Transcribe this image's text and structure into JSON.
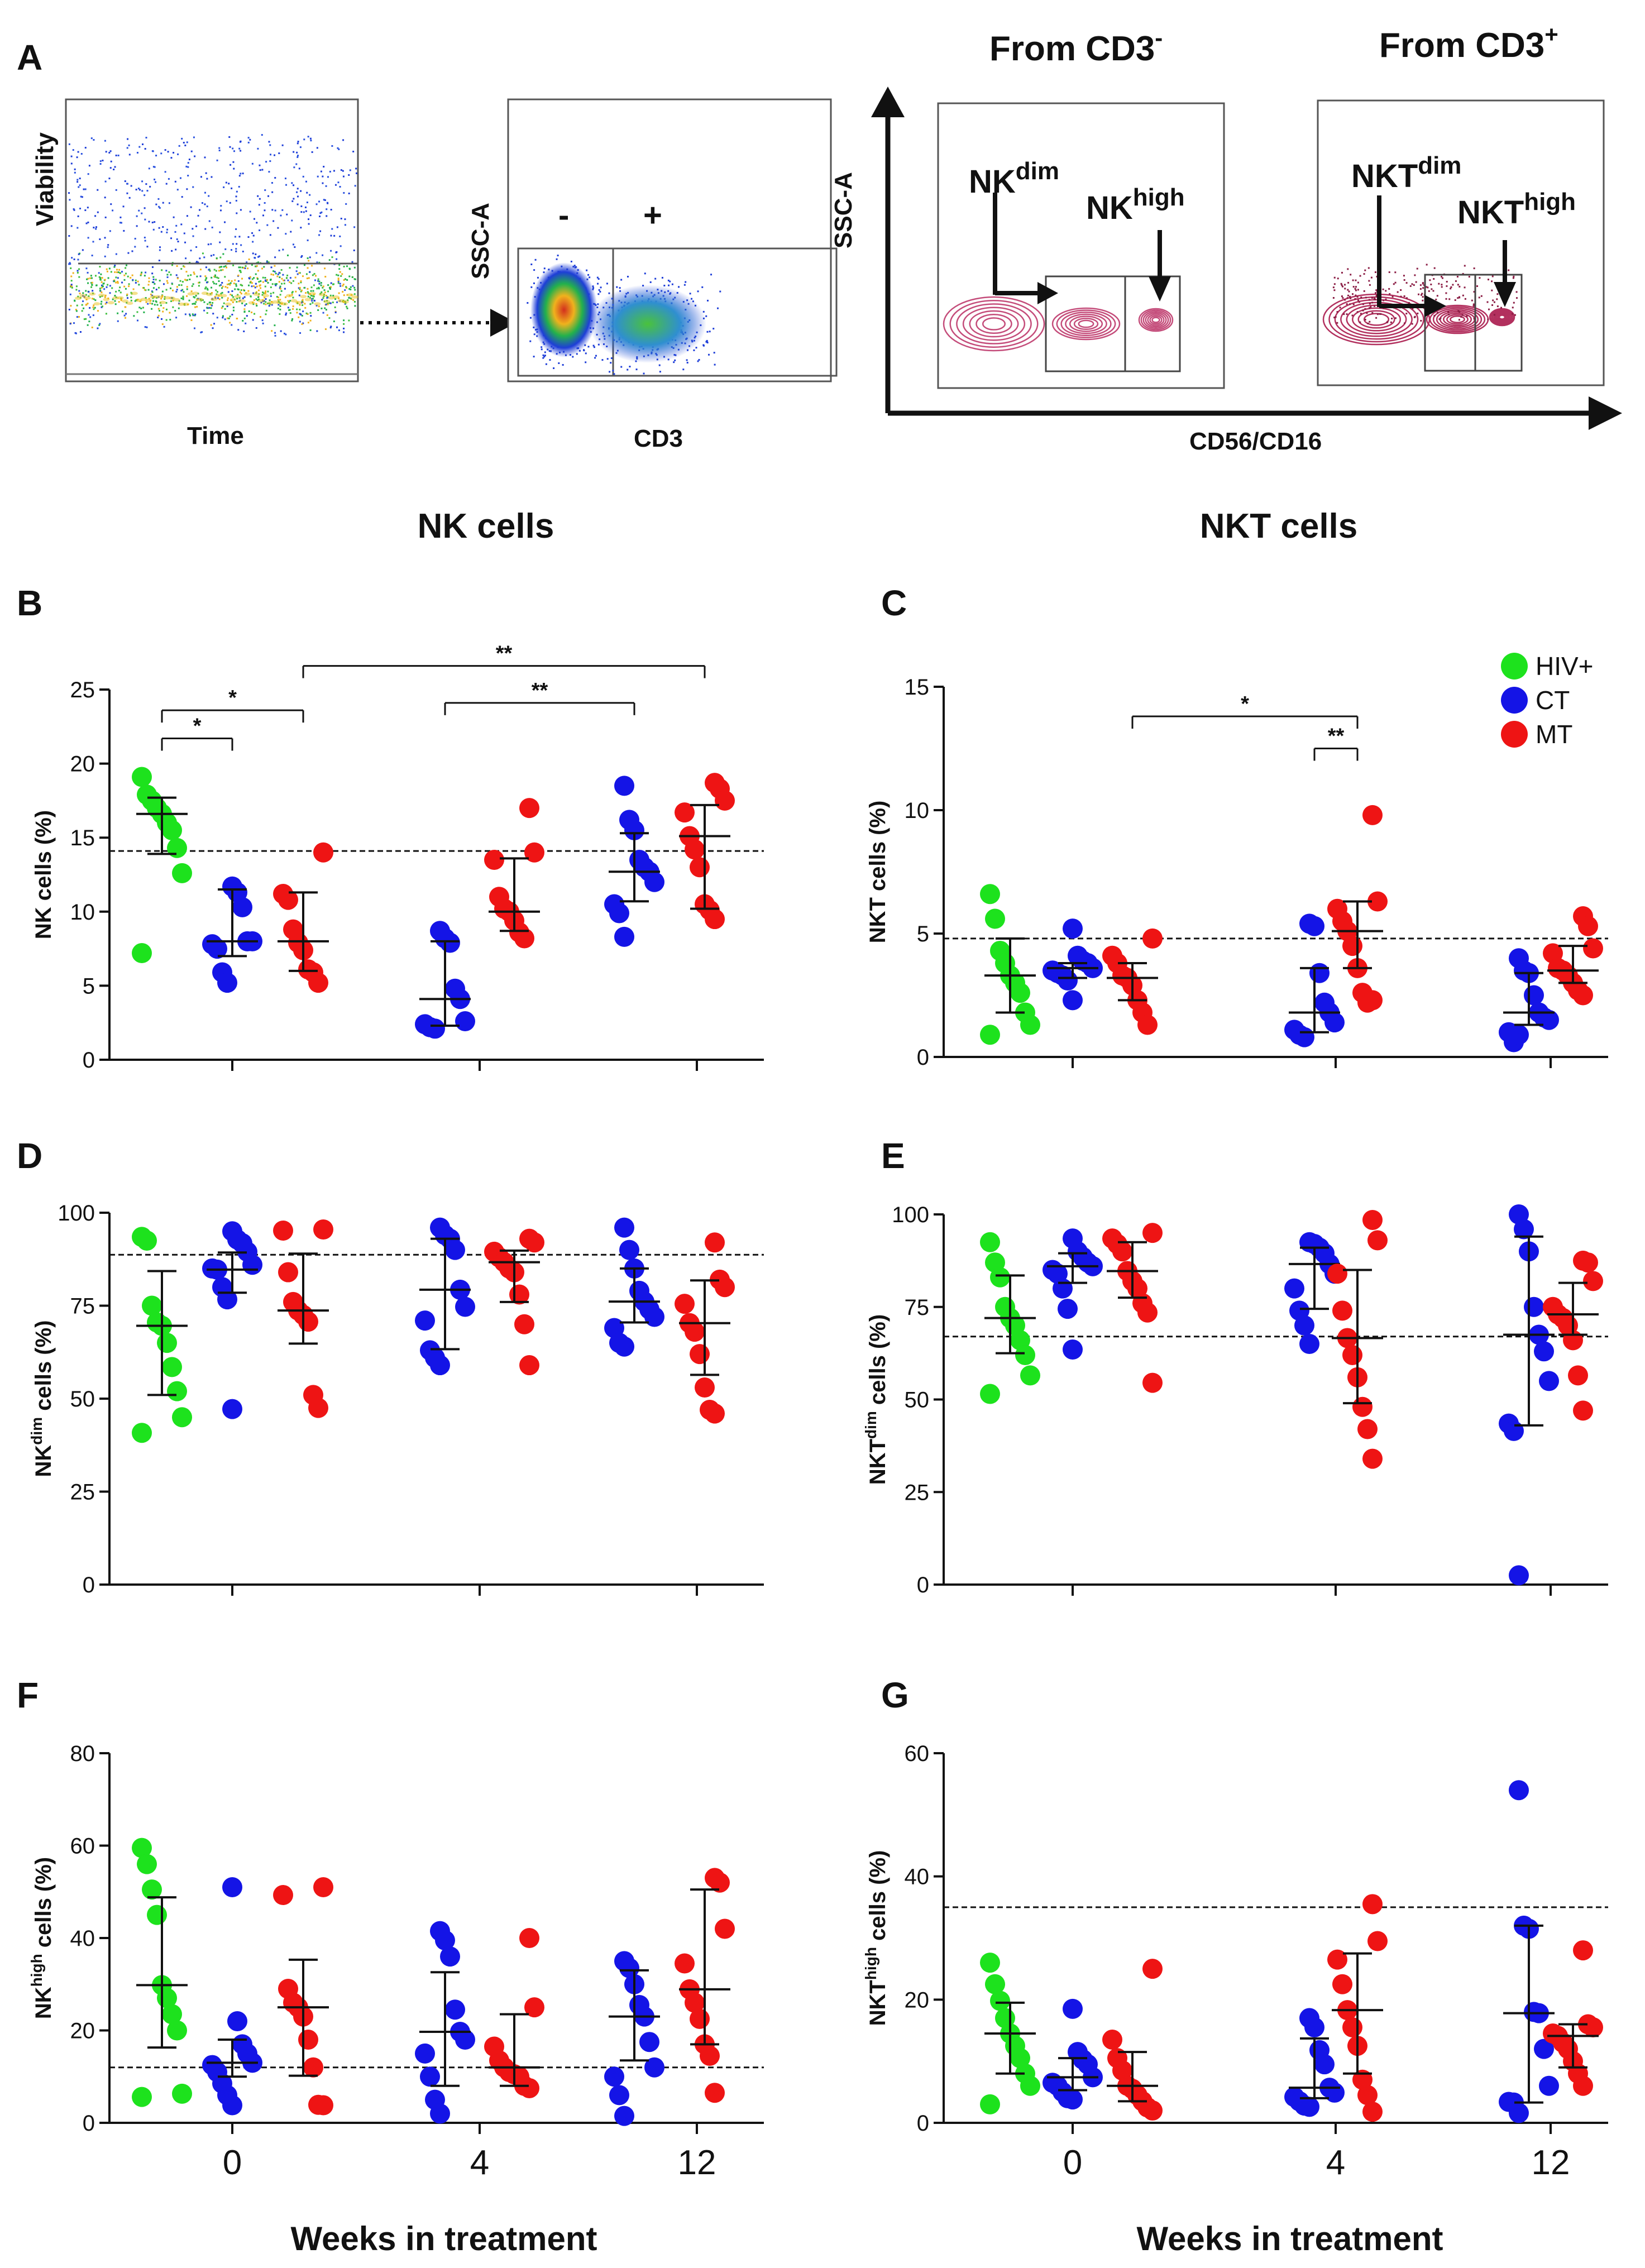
{
  "headers": {
    "left": "NK cells",
    "right": "NKT cells"
  },
  "x_axis_title": "Weeks in treatment",
  "legend": [
    {
      "label": "HIV+",
      "color": "#1de21d"
    },
    {
      "label": "CT",
      "color": "#1414e6"
    },
    {
      "label": "MT",
      "color": "#ee1414"
    }
  ],
  "panels": {
    "A": {
      "label": "A",
      "viability_ylabel": "Viability",
      "viability_xlabel": "Time",
      "ssc_label": "SSC-A",
      "cd3_label": "CD3",
      "gate_neg": "-",
      "gate_pos": "+",
      "from_neg_base": "From CD3",
      "from_neg_sup": "-",
      "from_pos_base": "From CD3",
      "from_pos_sup": "+",
      "nk_dim_base": "NK",
      "nk_high_base": "NK",
      "nkt_dim_base": "NKT",
      "nkt_high_base": "NKT",
      "dim_sup": "dim",
      "high_sup": "high",
      "cd56_label": "CD56/CD16"
    },
    "B": {
      "label": "B"
    },
    "C": {
      "label": "C"
    },
    "D": {
      "label": "D"
    },
    "E": {
      "label": "E"
    },
    "F": {
      "label": "F"
    },
    "G": {
      "label": "G"
    }
  },
  "chart_data": [
    {
      "panel": "B",
      "type": "scatter",
      "ylabel_base": "NK cells (%)",
      "ylabel_sup": "",
      "ylim": [
        0,
        25
      ],
      "yticks": [
        0,
        5,
        10,
        15,
        20,
        25
      ],
      "xticks": [
        "0",
        "4",
        "12"
      ],
      "show_xticks": false,
      "reference_line": 14.1,
      "groups": [
        {
          "series": "HIV+",
          "week": "0",
          "median": 16.6,
          "iqr": [
            13.9,
            17.7
          ],
          "values": [
            19.1,
            17.9,
            17.5,
            17.0,
            16.6,
            16.0,
            15.5,
            14.3,
            12.6,
            7.2
          ]
        },
        {
          "series": "CT",
          "week": "0",
          "median": 8.0,
          "iqr": [
            7.0,
            11.5
          ],
          "values": [
            11.7,
            11.3,
            10.3,
            8.0,
            8.0,
            7.8,
            7.5,
            5.9,
            5.2
          ]
        },
        {
          "series": "MT",
          "week": "0",
          "median": 8.0,
          "iqr": [
            6.0,
            11.3
          ],
          "values": [
            14.0,
            11.2,
            10.8,
            8.8,
            7.9,
            7.4,
            6.1,
            5.9,
            5.2
          ]
        },
        {
          "series": "CT",
          "week": "4",
          "median": 4.1,
          "iqr": [
            2.3,
            8.0
          ],
          "values": [
            8.7,
            8.2,
            7.9,
            4.8,
            4.1,
            2.6,
            2.4,
            2.2,
            2.1
          ]
        },
        {
          "series": "MT",
          "week": "4",
          "median": 10.0,
          "iqr": [
            8.7,
            13.6
          ],
          "values": [
            17.0,
            14.0,
            13.5,
            11.0,
            10.2,
            10.0,
            9.4,
            8.6,
            8.2
          ]
        },
        {
          "series": "CT",
          "week": "12",
          "median": 12.7,
          "iqr": [
            10.7,
            15.3
          ],
          "values": [
            18.5,
            16.2,
            15.5,
            13.5,
            13.0,
            12.7,
            12.0,
            10.5,
            9.9,
            8.3
          ]
        },
        {
          "series": "MT",
          "week": "12",
          "median": 15.1,
          "iqr": [
            10.2,
            17.2
          ],
          "values": [
            18.7,
            18.3,
            17.5,
            16.7,
            15.1,
            14.2,
            13.0,
            10.5,
            10.1,
            9.5
          ]
        }
      ],
      "brackets": [
        {
          "x1": "0:HIV+",
          "x2": "0:CT",
          "y": 21.7,
          "label": "*"
        },
        {
          "x1": "0:HIV+",
          "x2": "0:MT",
          "y": 23.6,
          "label": "*"
        },
        {
          "x1": "0:MT",
          "x2": "12:MT",
          "y": 26.6,
          "label": "**"
        },
        {
          "x1": "4:CT",
          "x2": "12:CT",
          "y": 24.1,
          "label": "**"
        }
      ]
    },
    {
      "panel": "C",
      "type": "scatter",
      "ylabel_base": "NKT cells (%)",
      "ylabel_sup": "",
      "ylim": [
        0,
        15
      ],
      "yticks": [
        0,
        5,
        10,
        15
      ],
      "xticks": [
        "0",
        "4",
        "12"
      ],
      "show_xticks": false,
      "reference_line": 4.8,
      "groups": [
        {
          "series": "HIV+",
          "week": "0",
          "median": 3.3,
          "iqr": [
            1.8,
            4.8
          ],
          "values": [
            6.6,
            5.6,
            4.3,
            3.8,
            3.3,
            3.0,
            2.6,
            1.8,
            1.3,
            0.9
          ]
        },
        {
          "series": "CT",
          "week": "0",
          "median": 3.6,
          "iqr": [
            3.2,
            3.8
          ],
          "values": [
            5.2,
            4.1,
            3.9,
            3.8,
            3.6,
            3.5,
            3.4,
            3.3,
            3.1,
            2.3
          ]
        },
        {
          "series": "MT",
          "week": "0",
          "median": 3.2,
          "iqr": [
            2.3,
            3.8
          ],
          "values": [
            4.8,
            4.1,
            3.8,
            3.3,
            3.2,
            2.9,
            2.3,
            1.8,
            1.3
          ]
        },
        {
          "series": "CT",
          "week": "4",
          "median": 1.8,
          "iqr": [
            1.0,
            3.6
          ],
          "values": [
            5.4,
            5.3,
            3.4,
            2.2,
            1.8,
            1.4,
            1.1,
            0.9,
            0.8
          ]
        },
        {
          "series": "MT",
          "week": "4",
          "median": 5.1,
          "iqr": [
            3.6,
            6.3
          ],
          "values": [
            9.8,
            6.3,
            6.0,
            5.5,
            5.1,
            4.5,
            3.6,
            2.6,
            2.2,
            2.3
          ]
        },
        {
          "series": "CT",
          "week": "12",
          "median": 1.8,
          "iqr": [
            1.3,
            3.4
          ],
          "values": [
            4.0,
            3.5,
            3.4,
            2.5,
            1.8,
            1.6,
            1.5,
            1.0,
            0.6,
            0.9
          ]
        },
        {
          "series": "MT",
          "week": "12",
          "median": 3.5,
          "iqr": [
            3.0,
            4.5
          ],
          "values": [
            5.7,
            5.3,
            4.4,
            4.2,
            3.6,
            3.5,
            3.3,
            3.0,
            2.7,
            2.5
          ]
        }
      ],
      "brackets": [
        {
          "x1": "0:MT",
          "x2": "4:MT",
          "y": 13.8,
          "label": "*"
        },
        {
          "x1": "4:CT",
          "x2": "4:MT",
          "y": 12.5,
          "label": "**"
        }
      ]
    },
    {
      "panel": "D",
      "type": "scatter",
      "ylabel_base": "NK",
      "ylabel_sup": "dim",
      "ylabel_suffix": " cells (%)",
      "ylim": [
        0,
        100
      ],
      "yticks": [
        0,
        25,
        50,
        75,
        100
      ],
      "xticks": [
        "0",
        "4",
        "12"
      ],
      "show_xticks": false,
      "reference_line": 88.7,
      "groups": [
        {
          "series": "HIV+",
          "week": "0",
          "median": 69.6,
          "iqr": [
            51.0,
            84.3
          ],
          "values": [
            93.5,
            92.5,
            75.0,
            70.5,
            69.6,
            65.0,
            58.5,
            52.0,
            45.0,
            40.8
          ]
        },
        {
          "series": "CT",
          "week": "0",
          "median": 84.7,
          "iqr": [
            78.5,
            89.3
          ],
          "values": [
            95.0,
            92.8,
            91.8,
            89.5,
            86.0,
            85.0,
            84.7,
            80.0,
            76.7,
            47.2
          ]
        },
        {
          "series": "MT",
          "week": "0",
          "median": 73.7,
          "iqr": [
            64.8,
            89.0
          ],
          "values": [
            95.5,
            95.2,
            84.0,
            76.0,
            73.7,
            72.5,
            70.7,
            51.0,
            47.5
          ]
        },
        {
          "series": "CT",
          "week": "4",
          "median": 79.3,
          "iqr": [
            63.3,
            93.0
          ],
          "values": [
            96.0,
            94.0,
            93.0,
            90.0,
            79.3,
            74.7,
            71.0,
            63.0,
            61.0,
            59.0
          ]
        },
        {
          "series": "MT",
          "week": "4",
          "median": 86.7,
          "iqr": [
            76.0,
            89.8
          ],
          "values": [
            93.0,
            92.0,
            89.5,
            88.0,
            86.7,
            85.0,
            84.0,
            78.0,
            70.0,
            59.0
          ]
        },
        {
          "series": "CT",
          "week": "12",
          "median": 76.1,
          "iqr": [
            70.5,
            85.0
          ],
          "values": [
            96.0,
            90.0,
            85.0,
            79.0,
            76.1,
            74.0,
            72.0,
            69.0,
            65.0,
            64.0
          ]
        },
        {
          "series": "MT",
          "week": "12",
          "median": 70.3,
          "iqr": [
            56.4,
            81.8
          ],
          "values": [
            92.0,
            82.0,
            80.0,
            75.5,
            70.3,
            68.0,
            62.0,
            53.0,
            47.0,
            46.0
          ]
        }
      ],
      "brackets": []
    },
    {
      "panel": "E",
      "type": "scatter",
      "ylabel_base": "NKT",
      "ylabel_sup": "dim",
      "ylabel_suffix": " cells (%)",
      "ylim": [
        0,
        100
      ],
      "yticks": [
        0,
        25,
        50,
        75,
        100
      ],
      "xticks": [
        "0",
        "4",
        "12"
      ],
      "show_xticks": false,
      "reference_line": 67.0,
      "groups": [
        {
          "series": "HIV+",
          "week": "0",
          "median": 72.0,
          "iqr": [
            62.5,
            83.5
          ],
          "values": [
            92.5,
            87.0,
            83.0,
            75.0,
            72.0,
            70.0,
            66.0,
            62.0,
            56.5,
            51.5
          ]
        },
        {
          "series": "CT",
          "week": "0",
          "median": 86.0,
          "iqr": [
            81.5,
            89.5
          ],
          "values": [
            93.5,
            90.0,
            88.5,
            87.0,
            86.0,
            85.0,
            84.0,
            80.0,
            74.5,
            63.5
          ]
        },
        {
          "series": "MT",
          "week": "0",
          "median": 84.7,
          "iqr": [
            77.5,
            92.5
          ],
          "values": [
            95.0,
            93.5,
            92.0,
            90.0,
            84.7,
            82.0,
            80.0,
            76.0,
            73.5,
            54.5
          ]
        },
        {
          "series": "CT",
          "week": "4",
          "median": 86.6,
          "iqr": [
            74.5,
            91.0
          ],
          "values": [
            92.5,
            92.0,
            91.0,
            89.5,
            86.6,
            84.0,
            80.0,
            74.0,
            70.0,
            65.0
          ]
        },
        {
          "series": "MT",
          "week": "4",
          "median": 66.6,
          "iqr": [
            49.0,
            85.0
          ],
          "values": [
            98.5,
            93.0,
            84.0,
            74.0,
            66.6,
            62.0,
            56.0,
            48.0,
            42.0,
            34.0
          ]
        },
        {
          "series": "CT",
          "week": "12",
          "median": 67.5,
          "iqr": [
            43.0,
            94.0
          ],
          "values": [
            100.0,
            96.0,
            90.0,
            75.0,
            67.5,
            63.0,
            55.0,
            43.5,
            41.5,
            2.5
          ]
        },
        {
          "series": "MT",
          "week": "12",
          "median": 73.0,
          "iqr": [
            67.5,
            81.5
          ],
          "values": [
            87.5,
            87.0,
            82.0,
            75.0,
            73.0,
            72.0,
            70.0,
            66.0,
            56.5,
            47.0
          ]
        }
      ],
      "brackets": []
    },
    {
      "panel": "F",
      "type": "scatter",
      "ylabel_base": "NK",
      "ylabel_sup": "high",
      "ylabel_suffix": " cells (%)",
      "ylim": [
        0,
        80
      ],
      "yticks": [
        0,
        20,
        40,
        60,
        80
      ],
      "xticks": [
        "0",
        "4",
        "12"
      ],
      "show_xticks": true,
      "reference_line": 12.0,
      "groups": [
        {
          "series": "HIV+",
          "week": "0",
          "median": 29.8,
          "iqr": [
            16.3,
            48.8
          ],
          "values": [
            59.5,
            56.0,
            50.5,
            45.0,
            29.8,
            27.0,
            23.5,
            20.0,
            6.3,
            5.6
          ]
        },
        {
          "series": "CT",
          "week": "0",
          "median": 13.0,
          "iqr": [
            10.0,
            18.0
          ],
          "values": [
            51.0,
            22.0,
            17.0,
            15.0,
            13.0,
            12.5,
            11.0,
            8.5,
            6.0,
            3.8
          ]
        },
        {
          "series": "MT",
          "week": "0",
          "median": 25.0,
          "iqr": [
            10.2,
            35.3
          ],
          "values": [
            51.0,
            49.3,
            29.0,
            26.0,
            25.0,
            23.0,
            18.0,
            12.0,
            3.9,
            3.8
          ]
        },
        {
          "series": "CT",
          "week": "4",
          "median": 19.7,
          "iqr": [
            8.0,
            32.6
          ],
          "values": [
            41.5,
            39.5,
            36.0,
            24.5,
            19.7,
            18.0,
            15.0,
            10.0,
            5.0,
            2.0
          ]
        },
        {
          "series": "MT",
          "week": "4",
          "median": 12.0,
          "iqr": [
            8.0,
            23.5
          ],
          "values": [
            40.0,
            25.0,
            16.5,
            13.5,
            12.0,
            11.0,
            10.5,
            10.0,
            8.0,
            7.5
          ]
        },
        {
          "series": "CT",
          "week": "12",
          "median": 23.0,
          "iqr": [
            13.5,
            33.0
          ],
          "values": [
            35.0,
            33.5,
            30.0,
            25.5,
            23.0,
            17.5,
            12.0,
            10.0,
            6.0,
            1.5
          ]
        },
        {
          "series": "MT",
          "week": "12",
          "median": 28.9,
          "iqr": [
            17.0,
            50.5
          ],
          "values": [
            53.0,
            52.0,
            42.0,
            34.5,
            28.9,
            26.0,
            22.5,
            17.0,
            14.5,
            6.5
          ]
        }
      ],
      "brackets": []
    },
    {
      "panel": "G",
      "type": "scatter",
      "ylabel_base": "NKT",
      "ylabel_sup": "high",
      "ylabel_suffix": " cells (%)",
      "ylim": [
        0,
        60
      ],
      "yticks": [
        0,
        20,
        40,
        60
      ],
      "xticks": [
        "0",
        "4",
        "12"
      ],
      "show_xticks": true,
      "reference_line": 35.0,
      "groups": [
        {
          "series": "HIV+",
          "week": "0",
          "median": 14.5,
          "iqr": [
            8.0,
            19.5
          ],
          "values": [
            26.0,
            22.5,
            19.8,
            17.0,
            14.5,
            12.5,
            10.5,
            8.0,
            6.0,
            3.0
          ]
        },
        {
          "series": "CT",
          "week": "0",
          "median": 7.4,
          "iqr": [
            5.3,
            10.5
          ],
          "values": [
            18.5,
            11.5,
            10.3,
            9.5,
            7.4,
            6.5,
            6.0,
            5.0,
            4.0,
            3.8
          ]
        },
        {
          "series": "MT",
          "week": "0",
          "median": 6.0,
          "iqr": [
            3.5,
            11.5
          ],
          "values": [
            25.0,
            13.5,
            10.5,
            8.5,
            6.0,
            5.5,
            4.5,
            3.5,
            2.5,
            2.0
          ]
        },
        {
          "series": "CT",
          "week": "4",
          "median": 5.7,
          "iqr": [
            4.0,
            13.7
          ],
          "values": [
            17.0,
            15.5,
            11.8,
            9.5,
            5.7,
            4.9,
            4.2,
            3.5,
            2.8,
            2.6
          ]
        },
        {
          "series": "MT",
          "week": "4",
          "median": 18.3,
          "iqr": [
            8.0,
            27.5
          ],
          "values": [
            35.5,
            29.5,
            26.5,
            22.5,
            18.3,
            15.5,
            12.5,
            7.0,
            4.5,
            1.8
          ]
        },
        {
          "series": "CT",
          "week": "12",
          "median": 17.8,
          "iqr": [
            3.3,
            32.0
          ],
          "values": [
            54.0,
            32.0,
            31.5,
            18.0,
            17.8,
            12.0,
            6.0,
            3.4,
            3.3,
            1.6
          ]
        },
        {
          "series": "MT",
          "week": "12",
          "median": 14.1,
          "iqr": [
            9.0,
            16.0
          ],
          "values": [
            28.0,
            16.0,
            15.5,
            14.5,
            14.1,
            13.0,
            12.0,
            10.0,
            8.0,
            6.0
          ]
        }
      ],
      "brackets": []
    }
  ]
}
